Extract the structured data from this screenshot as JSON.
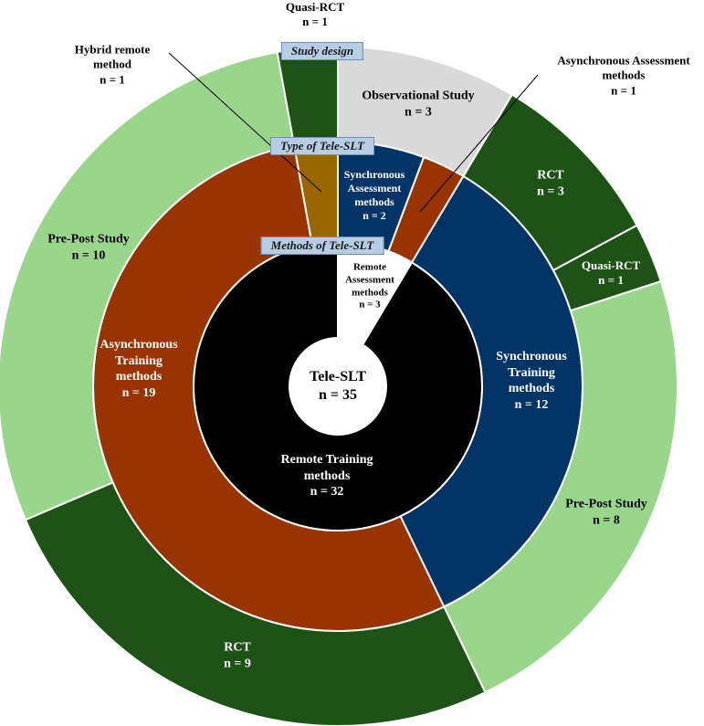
{
  "chart_data": {
    "type": "sunburst",
    "center": {
      "label": "Tele-SLT",
      "n": "n = 35"
    },
    "ring_titles": {
      "methods": "Methods of Tele-SLT",
      "type": "Type of Tele-SLT",
      "design": "Study design"
    },
    "rings": {
      "methods": [
        {
          "id": "rem_assess",
          "lines": [
            "Remote",
            "Assessment",
            "methods",
            "n = 3"
          ],
          "value": 3,
          "color": "#ffffff"
        },
        {
          "id": "rem_train",
          "lines": [
            "Remote Training",
            "methods",
            "n = 32"
          ],
          "value": 32,
          "color": "#000000"
        }
      ],
      "type": [
        {
          "id": "sync_assess",
          "lines": [
            "Synchronous",
            "Assessment",
            "methods",
            "n = 2"
          ],
          "value": 2,
          "color": "#003366"
        },
        {
          "id": "async_assess",
          "lines": [
            "Asynchronous Assessment",
            "methods",
            "n = 1"
          ],
          "value": 1,
          "color": "#993300"
        },
        {
          "id": "sync_train",
          "lines": [
            "Synchronous",
            "Training",
            "methods",
            "n = 12"
          ],
          "value": 12,
          "color": "#003366"
        },
        {
          "id": "async_train",
          "lines": [
            "Asynchronous",
            "Training",
            "methods",
            "n = 19"
          ],
          "value": 19,
          "color": "#993300"
        },
        {
          "id": "hybrid",
          "lines": [
            "Hybrid remote",
            "method",
            "n = 1"
          ],
          "value": 1,
          "color": "#996600"
        }
      ],
      "design": [
        {
          "id": "obs",
          "lines": [
            "Observational Study",
            "n = 3"
          ],
          "value": 3,
          "color": "#d9d9d9"
        },
        {
          "id": "rct_a",
          "lines": [
            "RCT",
            "n = 3"
          ],
          "value": 3,
          "color": "#1e5217"
        },
        {
          "id": "quasi_a",
          "lines": [
            "Quasi-RCT",
            "n = 1"
          ],
          "value": 1,
          "color": "#1e5217"
        },
        {
          "id": "prepost_a",
          "lines": [
            "Pre-Post Study",
            "n = 8"
          ],
          "value": 8,
          "color": "#99d68c"
        },
        {
          "id": "rct_b",
          "lines": [
            "RCT",
            "n = 9"
          ],
          "value": 9,
          "color": "#1e5217"
        },
        {
          "id": "prepost_b",
          "lines": [
            "Pre-Post Study",
            "n = 10"
          ],
          "value": 10,
          "color": "#99d68c"
        },
        {
          "id": "quasi_b",
          "lines": [
            "Quasi-RCT",
            "n = 1"
          ],
          "value": 1,
          "color": "#1e5217"
        }
      ]
    }
  }
}
